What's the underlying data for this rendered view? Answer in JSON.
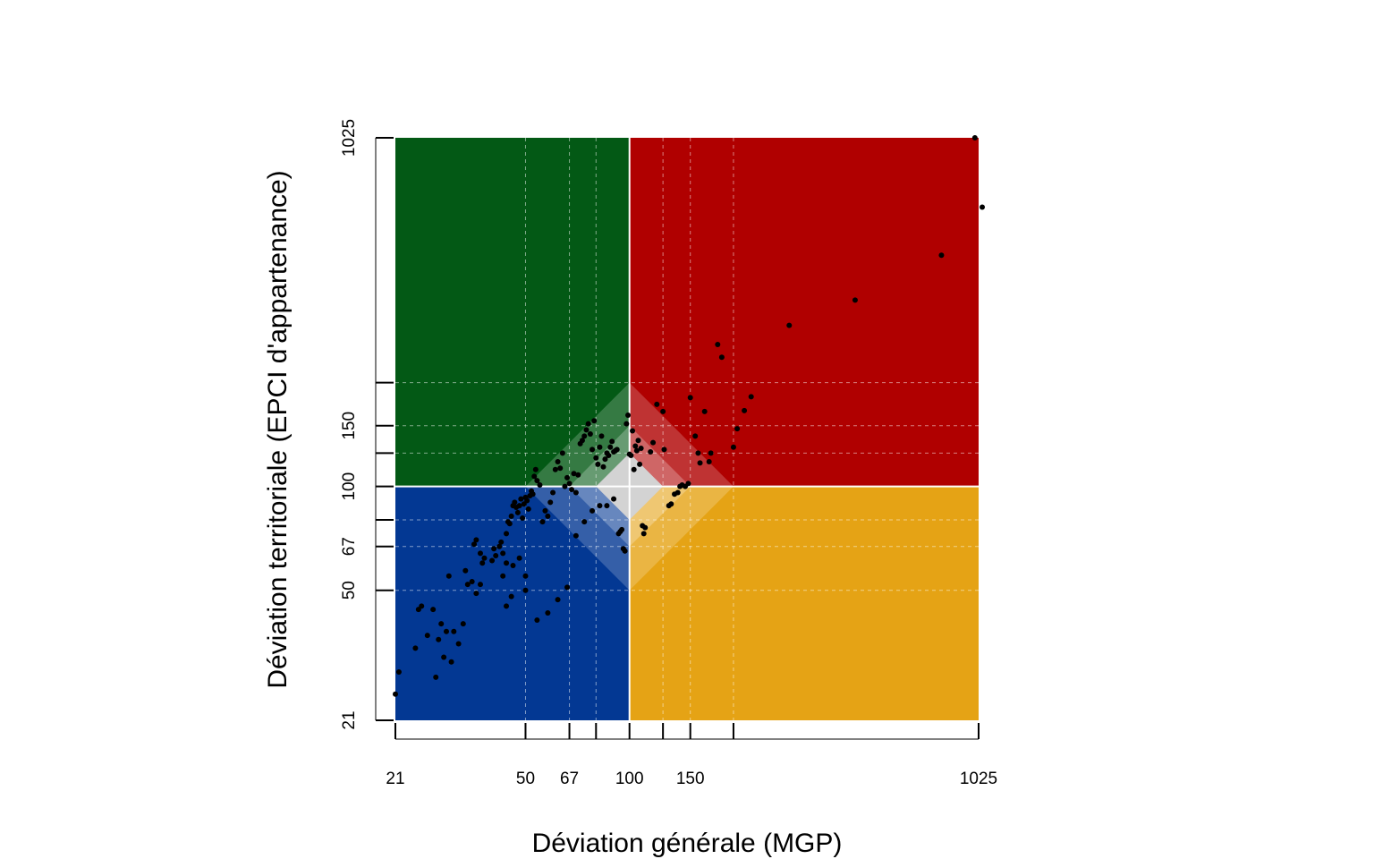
{
  "chart_data": {
    "type": "scatter",
    "xlabel": "Déviation générale (MGP)",
    "ylabel": "Déviation territoriale (EPCI d'appartenance)",
    "scale": "log",
    "xlim": [
      21,
      1025
    ],
    "ylim": [
      21,
      1025
    ],
    "x_tick_labels": [
      "21",
      "50",
      "67",
      "100",
      "150",
      "1025"
    ],
    "x_ticks": [
      21,
      50,
      67,
      80,
      100,
      125,
      150,
      200,
      1025
    ],
    "y_tick_labels": [
      "21",
      "50",
      "67",
      "100",
      "150",
      "1025"
    ],
    "y_ticks": [
      21,
      50,
      67,
      80,
      100,
      125,
      150,
      200,
      1025
    ],
    "grid": true,
    "grid_values": [
      50,
      67,
      80,
      125,
      150,
      200
    ],
    "reference": 100,
    "quadrant_colors": {
      "top_left": "#035915",
      "top_right": "#B00000",
      "bottom_left": "#033893",
      "bottom_right": "#E5A315",
      "center": "#D3D3D3"
    },
    "points": [
      [
        21,
        25
      ],
      [
        21.5,
        29
      ],
      [
        24,
        34
      ],
      [
        24.5,
        44
      ],
      [
        25,
        45
      ],
      [
        26,
        37
      ],
      [
        27,
        44
      ],
      [
        27.5,
        28
      ],
      [
        28,
        36
      ],
      [
        28.5,
        40
      ],
      [
        29,
        32
      ],
      [
        29.5,
        38
      ],
      [
        30,
        55
      ],
      [
        30.5,
        31
      ],
      [
        32,
        35
      ],
      [
        33,
        40
      ],
      [
        33.5,
        57
      ],
      [
        34,
        52
      ],
      [
        35,
        53
      ],
      [
        35.5,
        68
      ],
      [
        36,
        70
      ],
      [
        37,
        64
      ],
      [
        37.5,
        60
      ],
      [
        38,
        62
      ],
      [
        40,
        61
      ],
      [
        40.5,
        66
      ],
      [
        41,
        63
      ],
      [
        42,
        67
      ],
      [
        42.5,
        69
      ],
      [
        43,
        64
      ],
      [
        44,
        73
      ],
      [
        44.5,
        79
      ],
      [
        45,
        78
      ],
      [
        45.5,
        82
      ],
      [
        46,
        88
      ],
      [
        46.5,
        90
      ],
      [
        47,
        87
      ],
      [
        47.5,
        84
      ],
      [
        48,
        88
      ],
      [
        48.5,
        92
      ],
      [
        49,
        81
      ],
      [
        49.5,
        89
      ],
      [
        50,
        93
      ],
      [
        50.5,
        91
      ],
      [
        51,
        86
      ],
      [
        51.5,
        94
      ],
      [
        52,
        97
      ],
      [
        52.5,
        95
      ],
      [
        53,
        107
      ],
      [
        53.5,
        112
      ],
      [
        54,
        104
      ],
      [
        55,
        101
      ],
      [
        56,
        79
      ],
      [
        57,
        85
      ],
      [
        58,
        82
      ],
      [
        59,
        90
      ],
      [
        60,
        96
      ],
      [
        61,
        112
      ],
      [
        62,
        118
      ],
      [
        63,
        113
      ],
      [
        64,
        125
      ],
      [
        65,
        100
      ],
      [
        66,
        106
      ],
      [
        67,
        102
      ],
      [
        68,
        98
      ],
      [
        69,
        109
      ],
      [
        70,
        96
      ],
      [
        71,
        108
      ],
      [
        72,
        133
      ],
      [
        73,
        136
      ],
      [
        74,
        140
      ],
      [
        75,
        146
      ],
      [
        76,
        152
      ],
      [
        77,
        142
      ],
      [
        78,
        128
      ],
      [
        79,
        155
      ],
      [
        80,
        121
      ],
      [
        81,
        116
      ],
      [
        82,
        130
      ],
      [
        83,
        140
      ],
      [
        84,
        114
      ],
      [
        85,
        120
      ],
      [
        86,
        125
      ],
      [
        87,
        123
      ],
      [
        88,
        130
      ],
      [
        89,
        135
      ],
      [
        90,
        126
      ],
      [
        91,
        127
      ],
      [
        92,
        128
      ],
      [
        93,
        73
      ],
      [
        94,
        74
      ],
      [
        95,
        75
      ],
      [
        96,
        66
      ],
      [
        97,
        65
      ],
      [
        98,
        152
      ],
      [
        99,
        161
      ],
      [
        100,
        124
      ],
      [
        101,
        123
      ],
      [
        102,
        145
      ],
      [
        103,
        112
      ],
      [
        104,
        131
      ],
      [
        105,
        127
      ],
      [
        106,
        136
      ],
      [
        107,
        116
      ],
      [
        108,
        129
      ],
      [
        109,
        77
      ],
      [
        110,
        73
      ],
      [
        111,
        76
      ],
      [
        44,
        45
      ],
      [
        45.5,
        48
      ],
      [
        50,
        50
      ],
      [
        54,
        41
      ],
      [
        58,
        43
      ],
      [
        62,
        47
      ],
      [
        66,
        51
      ],
      [
        70,
        72
      ],
      [
        74,
        79
      ],
      [
        78,
        85
      ],
      [
        82,
        88
      ],
      [
        86,
        88
      ],
      [
        90,
        92
      ],
      [
        115,
        126
      ],
      [
        117,
        134
      ],
      [
        120,
        173
      ],
      [
        125,
        165
      ],
      [
        126,
        128
      ],
      [
        130,
        88
      ],
      [
        132,
        89
      ],
      [
        135,
        95
      ],
      [
        138,
        96
      ],
      [
        140,
        100
      ],
      [
        142,
        101
      ],
      [
        145,
        100
      ],
      [
        148,
        102
      ],
      [
        150,
        181
      ],
      [
        155,
        140
      ],
      [
        158,
        125
      ],
      [
        160,
        117
      ],
      [
        165,
        165
      ],
      [
        170,
        118
      ],
      [
        172,
        125
      ],
      [
        180,
        258
      ],
      [
        185,
        237
      ],
      [
        200,
        130
      ],
      [
        205,
        147
      ],
      [
        215,
        166
      ],
      [
        225,
        182
      ],
      [
        290,
        293
      ],
      [
        450,
        347
      ],
      [
        800,
        468
      ],
      [
        1000,
        1025
      ],
      [
        1050,
        645
      ],
      [
        50,
        55
      ],
      [
        46,
        59
      ],
      [
        43,
        55
      ],
      [
        37,
        52
      ],
      [
        36,
        49
      ],
      [
        31,
        38
      ],
      [
        44,
        60
      ],
      [
        48,
        62
      ]
    ]
  }
}
